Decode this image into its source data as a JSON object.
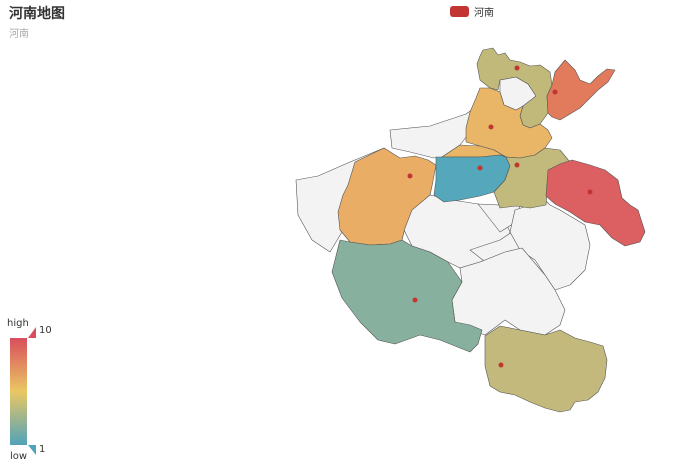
{
  "title": "河南地图",
  "subtitle": "河南",
  "legend": {
    "label": "河南",
    "color": "#c23531"
  },
  "visual_map": {
    "high_text": "high",
    "low_text": "low",
    "max": "10",
    "min": "1",
    "colors": [
      "#50a3ba",
      "#eac763",
      "#d94e5d"
    ]
  },
  "map": {
    "region_default_color": "#f3f3f3",
    "border_color": "#555555",
    "marker_color": "#c23531",
    "colored_regions": [
      {
        "id": "anyang",
        "fill": "#c0b97a"
      },
      {
        "id": "puyang",
        "fill": "#e27b5c"
      },
      {
        "id": "xinxiang",
        "fill": "#e9b566"
      },
      {
        "id": "jiaozuo",
        "fill": "#e9b566"
      },
      {
        "id": "luoyang",
        "fill": "#e9ad66"
      },
      {
        "id": "zhengzhou",
        "fill": "#55a8bb"
      },
      {
        "id": "kaifeng",
        "fill": "#c1ba7c"
      },
      {
        "id": "shangqiu",
        "fill": "#dc5f62"
      },
      {
        "id": "nanyang",
        "fill": "#87b09e"
      },
      {
        "id": "xinyang",
        "fill": "#c4b97c"
      }
    ]
  }
}
